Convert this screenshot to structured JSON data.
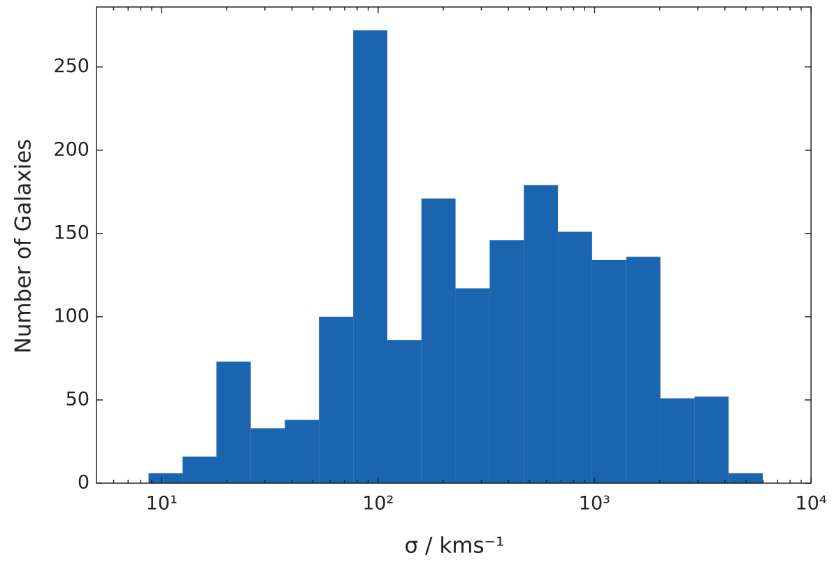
{
  "chart_data": {
    "type": "histogram",
    "xlabel": "σ / kms⁻¹",
    "ylabel": "Number of Galaxies",
    "bins": [
      8.7,
      12.5,
      17.9,
      25.8,
      37.1,
      53.3,
      76.7,
      110.3,
      158.5,
      227.9,
      327.7,
      471.2,
      677.5,
      974.1,
      1400.6,
      2013.8,
      2895.5,
      4163.2,
      5984
    ],
    "values": [
      6,
      16,
      73,
      33,
      38,
      100,
      272,
      86,
      171,
      117,
      146,
      179,
      151,
      134,
      136,
      51,
      52,
      6
    ],
    "color": "#1b65b0",
    "xscale": "log",
    "xlim": [
      5,
      10000
    ],
    "ylim": [
      0,
      286
    ],
    "xticks": [
      {
        "value": 10,
        "label": "10¹"
      },
      {
        "value": 100,
        "label": "10²"
      },
      {
        "value": 1000,
        "label": "10³"
      },
      {
        "value": 10000,
        "label": "10⁴"
      }
    ],
    "xminorticks": [
      6,
      7,
      8,
      9,
      20,
      30,
      40,
      50,
      60,
      70,
      80,
      90,
      200,
      300,
      400,
      500,
      600,
      700,
      800,
      900,
      2000,
      3000,
      4000,
      5000,
      6000,
      7000,
      8000,
      9000
    ],
    "yticks": [
      0,
      50,
      100,
      150,
      200,
      250
    ]
  }
}
